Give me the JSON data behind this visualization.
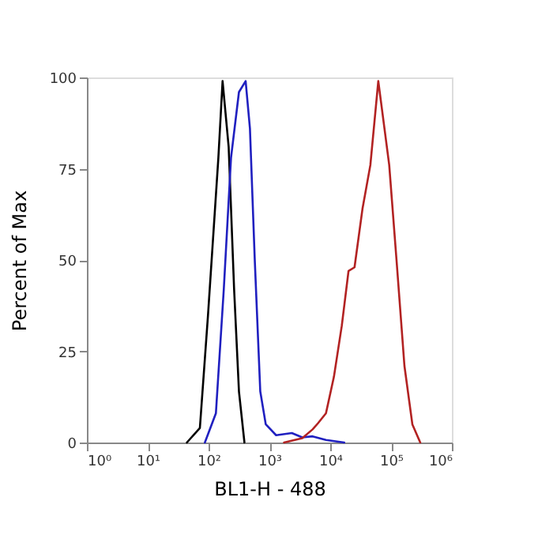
{
  "chart_data": {
    "type": "line",
    "xlabel": "BL1-H - 488",
    "ylabel": "Percent of Max",
    "log": "x",
    "xlim": [
      1,
      1000000
    ],
    "xticks": [
      {
        "value": 1,
        "label": "10⁰"
      },
      {
        "value": 10,
        "label": "10¹"
      },
      {
        "value": 100,
        "label": "10²"
      },
      {
        "value": 1000,
        "label": "10³"
      },
      {
        "value": 10000,
        "label": "10⁴"
      },
      {
        "value": 100000,
        "label": "10⁵"
      },
      {
        "value": 1000000,
        "label": "10⁶"
      }
    ],
    "ylim": [
      0,
      100
    ],
    "yticks": [
      0,
      25,
      50,
      75,
      100
    ],
    "grid": false,
    "legend": false,
    "marker": "none",
    "line_style": "solid",
    "series": [
      {
        "color": "#000000",
        "x": [
          44,
          72,
          98,
          145,
          170,
          214,
          263,
          316,
          389
        ],
        "values": [
          0,
          4,
          35,
          78,
          99,
          81,
          42,
          14,
          0
        ]
      },
      {
        "color": "#2020c0",
        "x": [
          87,
          132,
          178,
          234,
          316,
          407,
          479,
          575,
          708,
          871,
          1290,
          2340,
          3470,
          5130,
          8510,
          17000
        ],
        "values": [
          0,
          8,
          42,
          78,
          96,
          99,
          86,
          50,
          14,
          5,
          2,
          2.6,
          1.4,
          1.7,
          0.7,
          0
        ]
      },
      {
        "color": "#b22222",
        "x": [
          1740,
          3470,
          5130,
          6310,
          8510,
          11500,
          15500,
          20000,
          25100,
          33900,
          45700,
          61700,
          93300,
          123000,
          166000,
          224000,
          302000
        ],
        "values": [
          0,
          1.2,
          3.6,
          5.3,
          8,
          18,
          32,
          47,
          48,
          64,
          76,
          99,
          76,
          50,
          21,
          5,
          0
        ]
      }
    ]
  }
}
